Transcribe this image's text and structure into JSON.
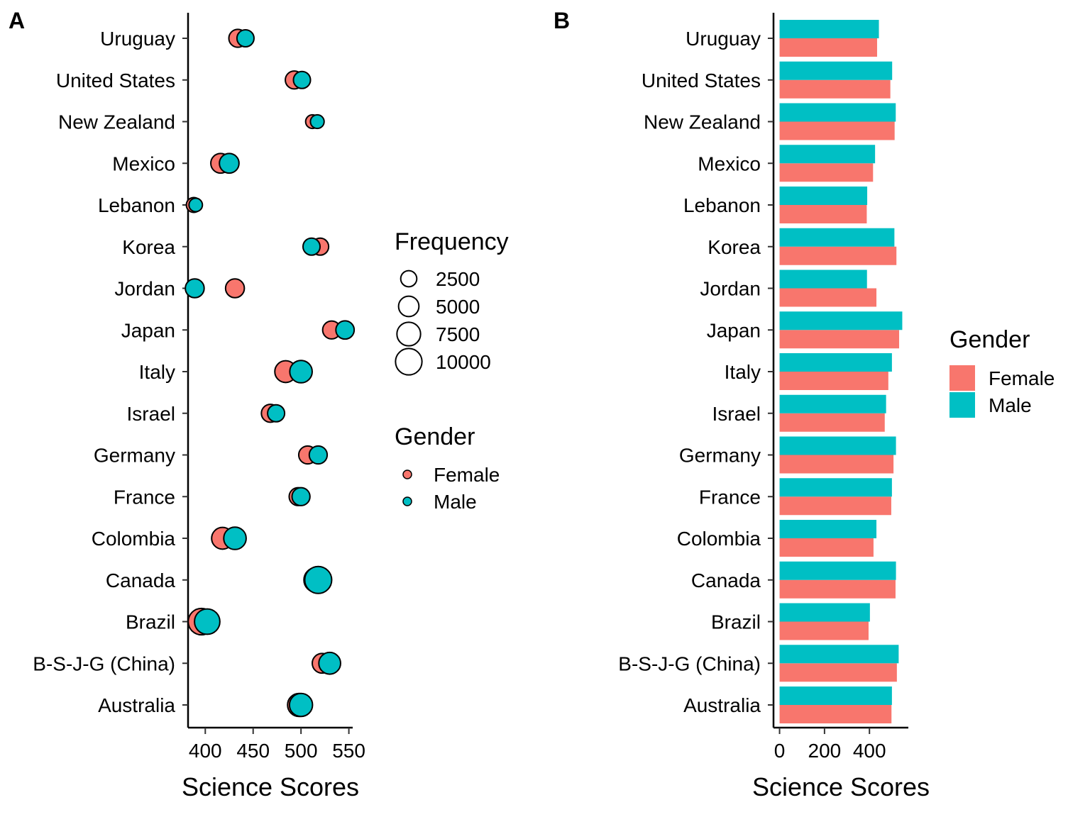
{
  "chart_data": [
    {
      "panel": "A",
      "type": "scatter",
      "categories": [
        "Australia",
        "B-S-J-G (China)",
        "Brazil",
        "Canada",
        "Colombia",
        "France",
        "Germany",
        "Israel",
        "Italy",
        "Japan",
        "Jordan",
        "Korea",
        "Lebanon",
        "Mexico",
        "New Zealand",
        "United States",
        "Uruguay"
      ],
      "series": [
        {
          "name": "Female",
          "color": "#F8766D",
          "values": [
            498,
            522,
            396,
            516,
            418,
            497,
            507,
            468,
            484,
            532,
            431,
            520,
            388,
            416,
            512,
            493,
            434
          ],
          "frequency": [
            7000,
            4500,
            10000,
            8500,
            6000,
            3500,
            3500,
            3500,
            6000,
            3500,
            4000,
            3000,
            2000,
            4500,
            1500,
            3500,
            3500
          ]
        },
        {
          "name": "Male",
          "color": "#00BFC4",
          "values": [
            500,
            530,
            402,
            518,
            431,
            500,
            518,
            474,
            500,
            546,
            389,
            511,
            390,
            425,
            517,
            501,
            442
          ],
          "frequency": [
            7000,
            6000,
            9000,
            10500,
            6500,
            3500,
            3500,
            3000,
            6500,
            3700,
            4000,
            3000,
            1400,
            4500,
            1500,
            3000,
            3000
          ]
        }
      ],
      "xlabel": "Science Scores",
      "xlim": [
        382,
        554
      ],
      "xticks": [
        400,
        450,
        500,
        550
      ],
      "legend": {
        "size_title": "Frequency",
        "size_breaks": [
          2500,
          5000,
          7500,
          10000
        ],
        "color_title": "Gender",
        "color_labels": [
          "Female",
          "Male"
        ]
      }
    },
    {
      "panel": "B",
      "type": "bar",
      "categories": [
        "Australia",
        "B-S-J-G (China)",
        "Brazil",
        "Canada",
        "Colombia",
        "France",
        "Germany",
        "Israel",
        "Italy",
        "Japan",
        "Jordan",
        "Korea",
        "Lebanon",
        "Mexico",
        "New Zealand",
        "United States",
        "Uruguay"
      ],
      "series": [
        {
          "name": "Female",
          "color": "#F8766D",
          "values": [
            498,
            522,
            396,
            516,
            418,
            497,
            507,
            468,
            484,
            532,
            431,
            520,
            388,
            416,
            512,
            493,
            434
          ]
        },
        {
          "name": "Male",
          "color": "#00BFC4",
          "values": [
            500,
            530,
            402,
            518,
            431,
            500,
            518,
            474,
            500,
            546,
            389,
            511,
            390,
            425,
            517,
            501,
            442
          ]
        }
      ],
      "xlabel": "Science Scores",
      "xlim": [
        -27,
        573
      ],
      "xticks": [
        0,
        200,
        400
      ],
      "legend": {
        "title": "Gender",
        "labels": [
          "Female",
          "Male"
        ]
      }
    }
  ]
}
